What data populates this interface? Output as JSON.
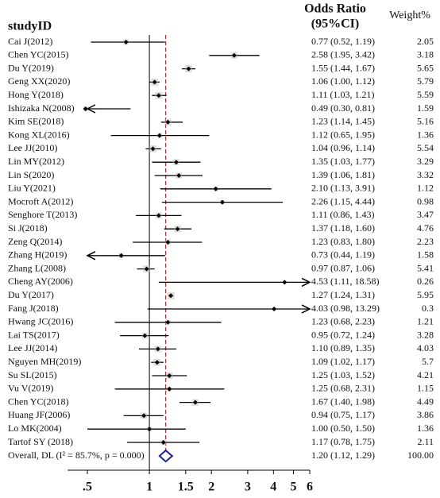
{
  "chart_data": {
    "type": "forest",
    "header_study": "studyID",
    "header_or": [
      "Odds Ratio",
      "(95%CI)"
    ],
    "header_weight": "Weight%",
    "log_x": true,
    "xlim": [
      0.5,
      6
    ],
    "xticks": [
      {
        "value": 0.5,
        "label": ".5"
      },
      1,
      1.5,
      2,
      3,
      4,
      5,
      6
    ],
    "color": "#000000",
    "pooled_color": "#1f1f8f",
    "dash_color": "#a0303a",
    "studies": [
      "Cai J(2012)",
      "Chen YC(2015)",
      "Du Y(2019)",
      "Geng XX(2020)",
      "Hong Y(2018)",
      "Ishizaka N(2008)",
      "Kim SE(2018)",
      "Kong XL(2016)",
      "Lee JJ(2010)",
      "Lin MY(2012)",
      "Lin S(2020)",
      "Liu Y(2021)",
      "Mocroft A(2012)",
      "Senghore T(2013)",
      "Si J(2018)",
      "Zeng Q(2014)",
      "Zhang H(2019)",
      "Zhang L(2008)",
      "Cheng AY(2006)",
      "Du Y(2017)",
      "Fang J(2018)",
      "Hwang JC(2016)",
      "Lai TS(2017)",
      "Lee JJ(2014)",
      "Nguyen MH(2019)",
      "Su SL(2015)",
      "Vu V(2019)",
      "Chen YC(2018)",
      "Huang JF(2006)",
      "Lo MK(2004)",
      "Tartof SY  (2018)"
    ],
    "or": [
      0.77,
      2.58,
      1.55,
      1.06,
      1.11,
      0.49,
      1.23,
      1.12,
      1.04,
      1.35,
      1.39,
      2.1,
      2.26,
      1.11,
      1.37,
      1.23,
      0.73,
      0.97,
      4.53,
      1.27,
      4.03,
      1.23,
      0.95,
      1.1,
      1.09,
      1.25,
      1.25,
      1.67,
      0.94,
      1.0,
      1.17
    ],
    "lower": [
      0.52,
      1.95,
      1.44,
      1.0,
      1.03,
      0.3,
      1.14,
      0.65,
      0.96,
      1.03,
      1.06,
      1.13,
      1.15,
      0.86,
      1.18,
      0.83,
      0.44,
      0.87,
      1.11,
      1.24,
      0.98,
      0.68,
      0.72,
      0.89,
      1.02,
      1.03,
      0.68,
      1.4,
      0.75,
      0.5,
      0.78
    ],
    "upper": [
      1.19,
      3.42,
      1.67,
      1.12,
      1.21,
      0.81,
      1.45,
      1.95,
      1.14,
      1.77,
      1.81,
      3.91,
      4.44,
      1.43,
      1.6,
      1.8,
      1.19,
      1.06,
      18.58,
      1.31,
      13.29,
      2.23,
      1.24,
      1.35,
      1.17,
      1.52,
      2.31,
      1.98,
      1.17,
      1.5,
      1.75
    ],
    "value_labels": [
      "0.77 (0.52, 1.19)",
      "2.58 (1.95, 3.42)",
      "1.55 (1.44, 1.67)",
      "1.06 (1.00, 1.12)",
      "1.11 (1.03, 1.21)",
      "0.49 (0.30, 0.81)",
      "1.23 (1.14, 1.45)",
      "1.12 (0.65, 1.95)",
      "1.04 (0.96, 1.14)",
      "1.35 (1.03, 1.77)",
      "1.39 (1.06, 1.81)",
      "2.10 (1.13, 3.91)",
      "2.26 (1.15, 4.44)",
      "1.11 (0.86, 1.43)",
      "1.37 (1.18, 1.60)",
      "1.23 (0.83, 1.80)",
      "0.73 (0.44, 1.19)",
      "0.97 (0.87, 1.06)",
      "4.53 (1.11, 18.58)",
      "1.27 (1.24, 1.31)",
      "4.03 (0.98, 13.29)",
      "1.23 (0.68, 2.23)",
      "0.95 (0.72, 1.24)",
      "1.10 (0.89, 1.35)",
      "1.09 (1.02, 1.17)",
      "1.25 (1.03, 1.52)",
      "1.25 (0.68, 2.31)",
      "1.67 (1.40, 1.98)",
      "0.94 (0.75, 1.17)",
      "1.00 (0.50, 1.50)",
      "1.17 (0.78, 1.75)"
    ],
    "weights": [
      2.05,
      3.18,
      5.65,
      5.79,
      5.59,
      1.59,
      5.16,
      1.36,
      5.54,
      3.29,
      3.32,
      1.12,
      0.98,
      3.47,
      4.76,
      2.23,
      1.58,
      5.41,
      0.26,
      5.95,
      0.3,
      1.21,
      3.28,
      4.03,
      5.7,
      4.21,
      1.15,
      4.49,
      3.86,
      1.36,
      2.11
    ],
    "pooled": {
      "label": "Overall, DL (I² = 85.7%, p = 0.000)",
      "or": 1.2,
      "lower": 1.12,
      "upper": 1.29,
      "value_label": "1.20 (1.12, 1.29)",
      "weight": 100,
      "weight_label": "100.00"
    }
  }
}
